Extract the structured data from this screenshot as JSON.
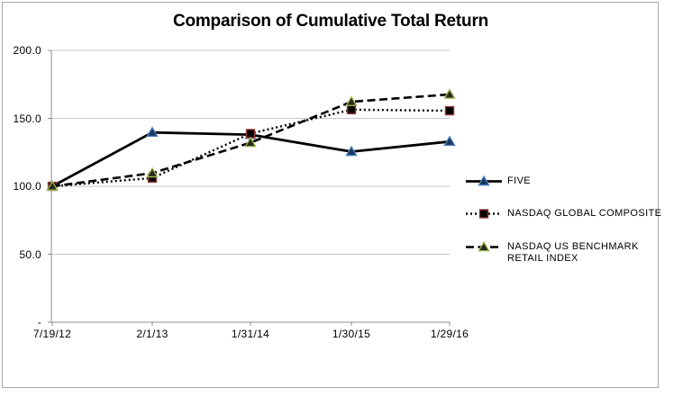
{
  "title": "Comparison of Cumulative Total Return",
  "colors": {
    "line": "#000000",
    "grid": "#C6C6C6",
    "axis": "#8C8C8C",
    "frame_border": "#A6A6A6",
    "text": "#000000"
  },
  "chart_data": {
    "type": "line",
    "title": "Comparison of Cumulative Total Return",
    "categories": [
      "7/19/12",
      "2/1/13",
      "1/31/14",
      "1/30/15",
      "1/29/16"
    ],
    "series": [
      {
        "name": "FIVE",
        "values": [
          100.0,
          139.6,
          138.0,
          125.5,
          132.9
        ],
        "line_style": "solid",
        "marker": "triangle",
        "marker_fill": "#17375E",
        "marker_stroke": "#4F81BD"
      },
      {
        "name": "NASDAQ GLOBAL COMPOSITE",
        "values": [
          100.0,
          106.1,
          138.8,
          156.4,
          155.6
        ],
        "line_style": "dotted",
        "marker": "square",
        "marker_fill": "#000000",
        "marker_stroke": "#953735"
      },
      {
        "name": "NASDAQ US BENCHMARK RETAIL INDEX",
        "values": [
          100.0,
          109.7,
          132.1,
          162.2,
          167.6
        ],
        "line_style": "dashed",
        "marker": "triangle",
        "marker_fill": "#2B2B1A",
        "marker_stroke": "#9BBB59"
      }
    ],
    "y_ticks": [
      {
        "value": 200,
        "label": "200.0"
      },
      {
        "value": 150,
        "label": "150.0"
      },
      {
        "value": 100,
        "label": "100.0"
      },
      {
        "value": 50,
        "label": "50.0"
      },
      {
        "value": 0,
        "label": "-"
      }
    ],
    "ylim": [
      0,
      200
    ],
    "grid": true,
    "legend_position": "right"
  }
}
